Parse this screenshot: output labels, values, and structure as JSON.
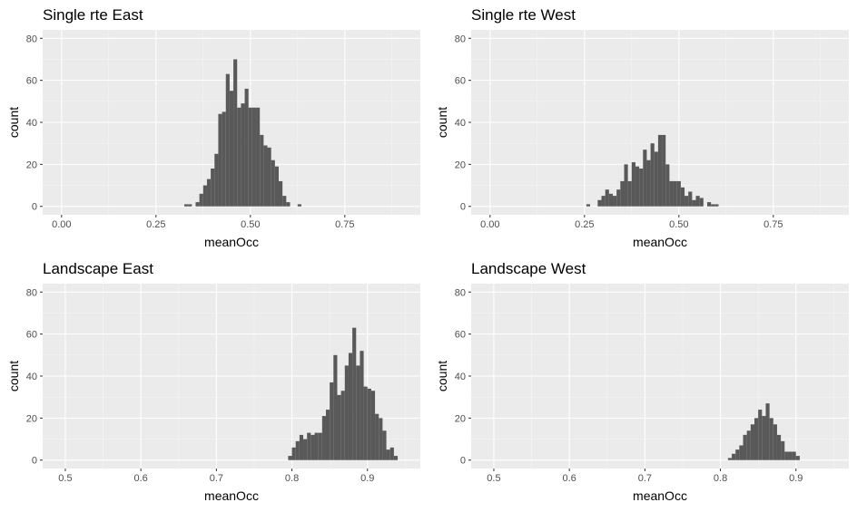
{
  "page_colors": {
    "background": "#ffffff",
    "panel": "#ebebeb",
    "grid_major": "#ffffff",
    "bar_fill": "#595959",
    "tick_text": "#4d4d4d"
  },
  "chart_data": [
    {
      "type": "bar",
      "title": "Single rte East",
      "xlabel": "meanOcc",
      "ylabel": "count",
      "xlim": [
        -0.05,
        0.95
      ],
      "ylim": [
        -4,
        84
      ],
      "x_ticks": [
        "0.00",
        "0.25",
        "0.50",
        "0.75"
      ],
      "x_tick_values": [
        0,
        0.25,
        0.5,
        0.75
      ],
      "y_ticks": [
        "0",
        "20",
        "40",
        "60",
        "80"
      ],
      "y_tick_values": [
        0,
        20,
        40,
        60,
        80
      ],
      "bin_width": 0.01,
      "bins": [
        {
          "x": 0.33,
          "count": 1
        },
        {
          "x": 0.34,
          "count": 1
        },
        {
          "x": 0.36,
          "count": 2
        },
        {
          "x": 0.37,
          "count": 6
        },
        {
          "x": 0.38,
          "count": 10
        },
        {
          "x": 0.39,
          "count": 13
        },
        {
          "x": 0.4,
          "count": 18
        },
        {
          "x": 0.41,
          "count": 25
        },
        {
          "x": 0.42,
          "count": 44
        },
        {
          "x": 0.43,
          "count": 45
        },
        {
          "x": 0.44,
          "count": 63
        },
        {
          "x": 0.45,
          "count": 55
        },
        {
          "x": 0.46,
          "count": 70
        },
        {
          "x": 0.47,
          "count": 47
        },
        {
          "x": 0.48,
          "count": 49
        },
        {
          "x": 0.49,
          "count": 56
        },
        {
          "x": 0.5,
          "count": 47
        },
        {
          "x": 0.51,
          "count": 47
        },
        {
          "x": 0.52,
          "count": 47
        },
        {
          "x": 0.53,
          "count": 34
        },
        {
          "x": 0.54,
          "count": 29
        },
        {
          "x": 0.55,
          "count": 28
        },
        {
          "x": 0.56,
          "count": 22
        },
        {
          "x": 0.57,
          "count": 19
        },
        {
          "x": 0.58,
          "count": 12
        },
        {
          "x": 0.59,
          "count": 5
        },
        {
          "x": 0.6,
          "count": 2
        },
        {
          "x": 0.63,
          "count": 1
        }
      ]
    },
    {
      "type": "bar",
      "title": "Single rte West",
      "xlabel": "meanOcc",
      "ylabel": "count",
      "xlim": [
        -0.05,
        0.95
      ],
      "ylim": [
        -4,
        84
      ],
      "x_ticks": [
        "0.00",
        "0.25",
        "0.50",
        "0.75"
      ],
      "x_tick_values": [
        0,
        0.25,
        0.5,
        0.75
      ],
      "y_ticks": [
        "0",
        "20",
        "40",
        "60",
        "80"
      ],
      "y_tick_values": [
        0,
        20,
        40,
        60,
        80
      ],
      "bin_width": 0.01,
      "bins": [
        {
          "x": 0.26,
          "count": 1
        },
        {
          "x": 0.29,
          "count": 3
        },
        {
          "x": 0.3,
          "count": 5
        },
        {
          "x": 0.31,
          "count": 8
        },
        {
          "x": 0.32,
          "count": 6
        },
        {
          "x": 0.33,
          "count": 5
        },
        {
          "x": 0.34,
          "count": 8
        },
        {
          "x": 0.35,
          "count": 12
        },
        {
          "x": 0.36,
          "count": 20
        },
        {
          "x": 0.37,
          "count": 12
        },
        {
          "x": 0.38,
          "count": 21
        },
        {
          "x": 0.39,
          "count": 19
        },
        {
          "x": 0.4,
          "count": 18
        },
        {
          "x": 0.41,
          "count": 27
        },
        {
          "x": 0.42,
          "count": 22
        },
        {
          "x": 0.43,
          "count": 30
        },
        {
          "x": 0.44,
          "count": 26
        },
        {
          "x": 0.45,
          "count": 34
        },
        {
          "x": 0.46,
          "count": 34
        },
        {
          "x": 0.47,
          "count": 20
        },
        {
          "x": 0.48,
          "count": 12
        },
        {
          "x": 0.49,
          "count": 12
        },
        {
          "x": 0.5,
          "count": 12
        },
        {
          "x": 0.51,
          "count": 9
        },
        {
          "x": 0.52,
          "count": 5
        },
        {
          "x": 0.53,
          "count": 7
        },
        {
          "x": 0.54,
          "count": 3
        },
        {
          "x": 0.55,
          "count": 5
        },
        {
          "x": 0.56,
          "count": 4
        },
        {
          "x": 0.58,
          "count": 2
        },
        {
          "x": 0.59,
          "count": 1
        },
        {
          "x": 0.6,
          "count": 1
        }
      ]
    },
    {
      "type": "bar",
      "title": "Landscape East",
      "xlabel": "meanOcc",
      "ylabel": "count",
      "xlim": [
        0.47,
        0.97
      ],
      "ylim": [
        -4,
        84
      ],
      "x_ticks": [
        "0.5",
        "0.6",
        "0.7",
        "0.8",
        "0.9"
      ],
      "x_tick_values": [
        0.5,
        0.6,
        0.7,
        0.8,
        0.9
      ],
      "y_ticks": [
        "0",
        "20",
        "40",
        "60",
        "80"
      ],
      "y_tick_values": [
        0,
        20,
        40,
        60,
        80
      ],
      "bin_width": 0.005,
      "bins": [
        {
          "x": 0.7975,
          "count": 2
        },
        {
          "x": 0.8025,
          "count": 6
        },
        {
          "x": 0.8075,
          "count": 9
        },
        {
          "x": 0.8125,
          "count": 12
        },
        {
          "x": 0.8175,
          "count": 10
        },
        {
          "x": 0.8225,
          "count": 13
        },
        {
          "x": 0.8275,
          "count": 12
        },
        {
          "x": 0.8325,
          "count": 13
        },
        {
          "x": 0.8375,
          "count": 13
        },
        {
          "x": 0.8425,
          "count": 21
        },
        {
          "x": 0.8475,
          "count": 24
        },
        {
          "x": 0.8525,
          "count": 37
        },
        {
          "x": 0.8575,
          "count": 50
        },
        {
          "x": 0.8625,
          "count": 31
        },
        {
          "x": 0.8675,
          "count": 33
        },
        {
          "x": 0.8725,
          "count": 45
        },
        {
          "x": 0.8775,
          "count": 51
        },
        {
          "x": 0.8825,
          "count": 63
        },
        {
          "x": 0.8875,
          "count": 45
        },
        {
          "x": 0.8925,
          "count": 52
        },
        {
          "x": 0.8975,
          "count": 35
        },
        {
          "x": 0.9025,
          "count": 34
        },
        {
          "x": 0.9075,
          "count": 33
        },
        {
          "x": 0.9125,
          "count": 22
        },
        {
          "x": 0.9175,
          "count": 20
        },
        {
          "x": 0.9225,
          "count": 14
        },
        {
          "x": 0.9275,
          "count": 5
        },
        {
          "x": 0.9325,
          "count": 6
        },
        {
          "x": 0.9375,
          "count": 2
        }
      ]
    },
    {
      "type": "bar",
      "title": "Landscape West",
      "xlabel": "meanOcc",
      "ylabel": "count",
      "xlim": [
        0.47,
        0.97
      ],
      "ylim": [
        -4,
        84
      ],
      "x_ticks": [
        "0.5",
        "0.6",
        "0.7",
        "0.8",
        "0.9"
      ],
      "x_tick_values": [
        0.5,
        0.6,
        0.7,
        0.8,
        0.9
      ],
      "y_ticks": [
        "0",
        "20",
        "40",
        "60",
        "80"
      ],
      "y_tick_values": [
        0,
        20,
        40,
        60,
        80
      ],
      "bin_width": 0.005,
      "bins": [
        {
          "x": 0.8125,
          "count": 1
        },
        {
          "x": 0.8175,
          "count": 3
        },
        {
          "x": 0.8225,
          "count": 5
        },
        {
          "x": 0.8275,
          "count": 7
        },
        {
          "x": 0.8325,
          "count": 12
        },
        {
          "x": 0.8375,
          "count": 14
        },
        {
          "x": 0.8425,
          "count": 17
        },
        {
          "x": 0.8475,
          "count": 20
        },
        {
          "x": 0.8525,
          "count": 24
        },
        {
          "x": 0.8575,
          "count": 21
        },
        {
          "x": 0.8625,
          "count": 27
        },
        {
          "x": 0.8675,
          "count": 20
        },
        {
          "x": 0.8725,
          "count": 17
        },
        {
          "x": 0.8775,
          "count": 12
        },
        {
          "x": 0.8825,
          "count": 9
        },
        {
          "x": 0.8875,
          "count": 4
        },
        {
          "x": 0.8925,
          "count": 4
        },
        {
          "x": 0.8975,
          "count": 4
        },
        {
          "x": 0.9025,
          "count": 2
        }
      ]
    }
  ]
}
